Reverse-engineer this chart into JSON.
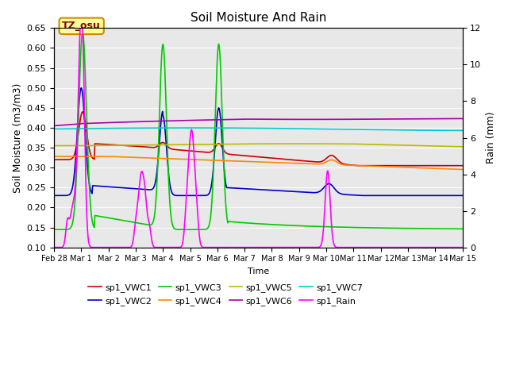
{
  "title": "Soil Moisture And Rain",
  "xlabel": "Time",
  "ylabel_left": "Soil Moisture (m3/m3)",
  "ylabel_right": "Rain (mm)",
  "ylim_left": [
    0.1,
    0.65
  ],
  "ylim_right": [
    0,
    12
  ],
  "annotation_text": "TZ_osu",
  "colors": {
    "VWC1": "#CC0000",
    "VWC2": "#0000CC",
    "VWC3": "#00CC00",
    "VWC4": "#FF8800",
    "VWC5": "#BBBB00",
    "VWC6": "#AA00AA",
    "VWC7": "#00CCCC",
    "Rain": "#FF00FF"
  },
  "legend_labels": [
    "sp1_VWC1",
    "sp1_VWC2",
    "sp1_VWC3",
    "sp1_VWC4",
    "sp1_VWC5",
    "sp1_VWC6",
    "sp1_VWC7",
    "sp1_Rain"
  ],
  "xtick_labels": [
    "Feb 28",
    "Mar 1",
    "Mar 2",
    "Mar 3",
    "Mar 4",
    "Mar 5",
    "Mar 6",
    "Mar 7",
    "Mar 8",
    "Mar 9",
    "Mar 10",
    "Mar 11",
    "Mar 12",
    "Mar 13",
    "Mar 14",
    "Mar 15"
  ],
  "yticks_left": [
    0.1,
    0.15,
    0.2,
    0.25,
    0.3,
    0.35,
    0.4,
    0.45,
    0.5,
    0.55,
    0.6,
    0.65
  ],
  "yticks_right": [
    0,
    2,
    4,
    6,
    8,
    10,
    12
  ],
  "background_color": "#E8E8E8",
  "fig_facecolor": "#FFFFFF",
  "linewidth": 1.2
}
